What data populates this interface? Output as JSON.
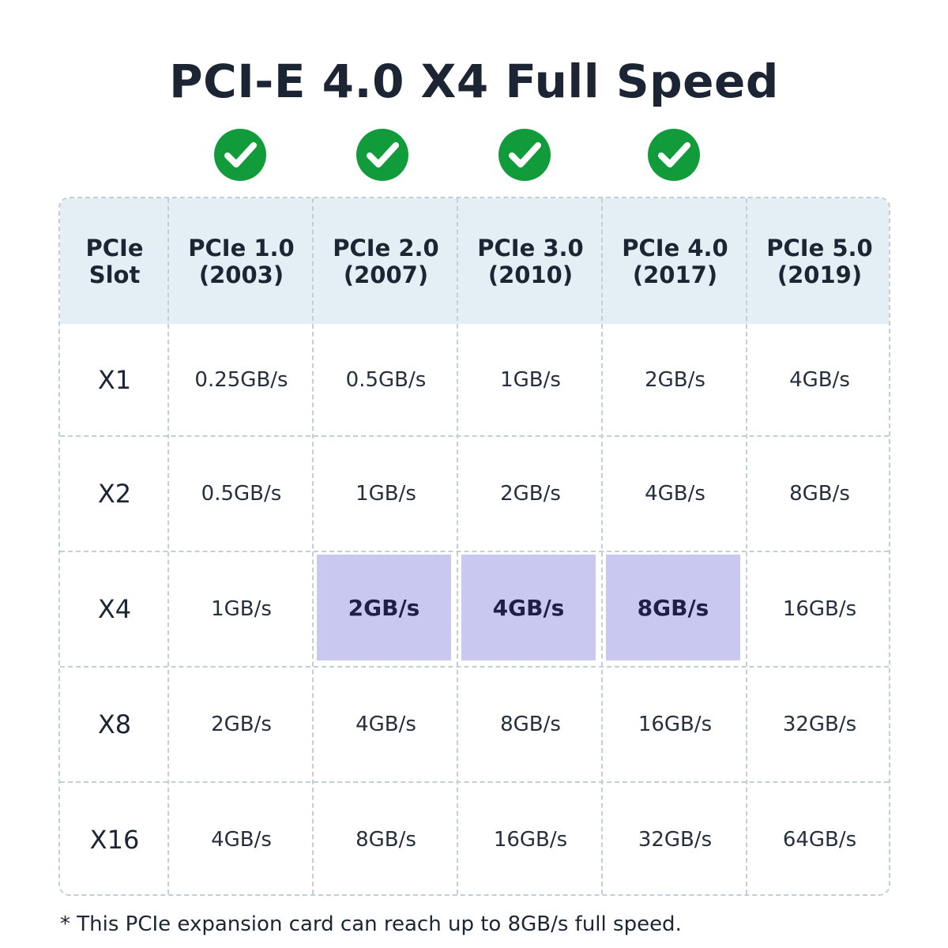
{
  "title": "PCI-E 4.0 X4 Full Speed",
  "check_icons": [
    "check-circle-icon",
    "check-circle-icon",
    "check-circle-icon",
    "check-circle-icon"
  ],
  "colors": {
    "check": "#129b3b",
    "header_bg": "#e3eef5",
    "highlight": "#c9c8f0",
    "text": "#1c2533"
  },
  "table": {
    "headers": [
      [
        "PCIe",
        "Slot"
      ],
      [
        "PCIe 1.0",
        "(2003)"
      ],
      [
        "PCIe 2.0",
        "(2007)"
      ],
      [
        "PCIe 3.0",
        "(2010)"
      ],
      [
        "PCIe 4.0",
        "(2017)"
      ],
      [
        "PCIe 5.0",
        "(2019)"
      ]
    ],
    "rows": [
      {
        "slot": "X1",
        "values": [
          "0.25GB/s",
          "0.5GB/s",
          "1GB/s",
          "2GB/s",
          "4GB/s"
        ]
      },
      {
        "slot": "X2",
        "values": [
          "0.5GB/s",
          "1GB/s",
          "2GB/s",
          "4GB/s",
          "8GB/s"
        ]
      },
      {
        "slot": "X4",
        "values": [
          "1GB/s",
          "2GB/s",
          "4GB/s",
          "8GB/s",
          "16GB/s"
        ],
        "highlighted": [
          false,
          true,
          true,
          true,
          false
        ]
      },
      {
        "slot": "X8",
        "values": [
          "2GB/s",
          "4GB/s",
          "8GB/s",
          "16GB/s",
          "32GB/s"
        ]
      },
      {
        "slot": "X16",
        "values": [
          "4GB/s",
          "8GB/s",
          "16GB/s",
          "32GB/s",
          "64GB/s"
        ]
      }
    ]
  },
  "footnote": "* This PCIe expansion card can reach up to 8GB/s full speed."
}
